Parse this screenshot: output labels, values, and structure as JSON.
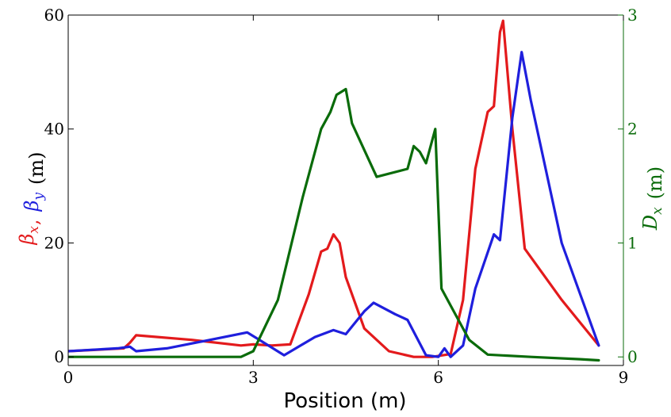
{
  "chart_data": {
    "type": "line",
    "xlabel": "Position (m)",
    "x_ticks": [
      "0",
      "3",
      "6",
      "9"
    ],
    "xlim": [
      0,
      9
    ],
    "left_axis": {
      "ylim": [
        -1.5,
        60
      ],
      "ticks": [
        "0",
        "20",
        "40",
        "60"
      ],
      "label_parts": [
        {
          "text": "β",
          "color": "#e31a1c",
          "sub": "x"
        },
        {
          "text": ",",
          "color": "#e31a1c",
          "sub": ""
        },
        {
          "text": "β",
          "color": "#1f1fdd",
          "sub": "y"
        },
        {
          "text": "(m)",
          "color": "#000000",
          "sub": ""
        }
      ]
    },
    "right_axis": {
      "ylim": [
        -0.075,
        3
      ],
      "ticks": [
        "0",
        "1",
        "2",
        "3"
      ],
      "label_parts": [
        {
          "text": "D",
          "color": "#0a6b0a",
          "sub": "x"
        },
        {
          "text": "(m)",
          "color": "#0a6b0a",
          "sub": ""
        }
      ],
      "color": "#0a6b0a"
    },
    "series": [
      {
        "axis": "left",
        "color": "#e31a1c",
        "x": [
          0,
          0.9,
          1.0,
          1.1,
          2.0,
          2.8,
          3.0,
          3.3,
          3.6,
          3.9,
          4.1,
          4.2,
          4.3,
          4.4,
          4.5,
          4.8,
          5.2,
          5.6,
          5.9,
          6.2,
          6.4,
          6.6,
          6.8,
          6.9,
          7.0,
          7.05,
          7.2,
          7.4,
          8.0,
          8.6
        ],
        "y": [
          1,
          1.5,
          2.5,
          3.8,
          3,
          2,
          2.2,
          2,
          2.2,
          11,
          18.5,
          19,
          21.5,
          20,
          14,
          5,
          1,
          0,
          0,
          0.5,
          10,
          33,
          43,
          44,
          57,
          59,
          40,
          19,
          10,
          2
        ]
      },
      {
        "axis": "left",
        "color": "#1f1fdd",
        "x": [
          0,
          0.8,
          1.0,
          1.1,
          1.6,
          2.3,
          2.9,
          3.1,
          3.5,
          4.0,
          4.3,
          4.5,
          4.8,
          4.95,
          5.3,
          5.5,
          5.8,
          6.0,
          6.1,
          6.2,
          6.4,
          6.6,
          6.9,
          7.0,
          7.2,
          7.35,
          7.5,
          8.0,
          8.6
        ],
        "y": [
          1,
          1.5,
          1.8,
          1,
          1.5,
          3,
          4.3,
          3,
          0.3,
          3.5,
          4.7,
          4,
          8,
          9.5,
          7.5,
          6.5,
          0.3,
          0,
          1.5,
          0,
          2,
          12,
          21.5,
          20.5,
          42,
          53.5,
          45,
          20,
          2
        ]
      },
      {
        "axis": "right",
        "color": "#0a6b0a",
        "x": [
          0,
          2.8,
          3.0,
          3.4,
          3.8,
          4.1,
          4.25,
          4.35,
          4.5,
          4.6,
          5.0,
          5.5,
          5.6,
          5.7,
          5.8,
          5.95,
          6.05,
          6.2,
          6.5,
          6.8,
          7.5,
          8.3,
          8.6
        ],
        "y": [
          0,
          0,
          0.05,
          0.5,
          1.4,
          2.0,
          2.15,
          2.3,
          2.35,
          2.05,
          1.58,
          1.65,
          1.85,
          1.8,
          1.7,
          2.0,
          0.6,
          0.45,
          0.15,
          0.02,
          0,
          -0.02,
          -0.03
        ]
      }
    ]
  }
}
